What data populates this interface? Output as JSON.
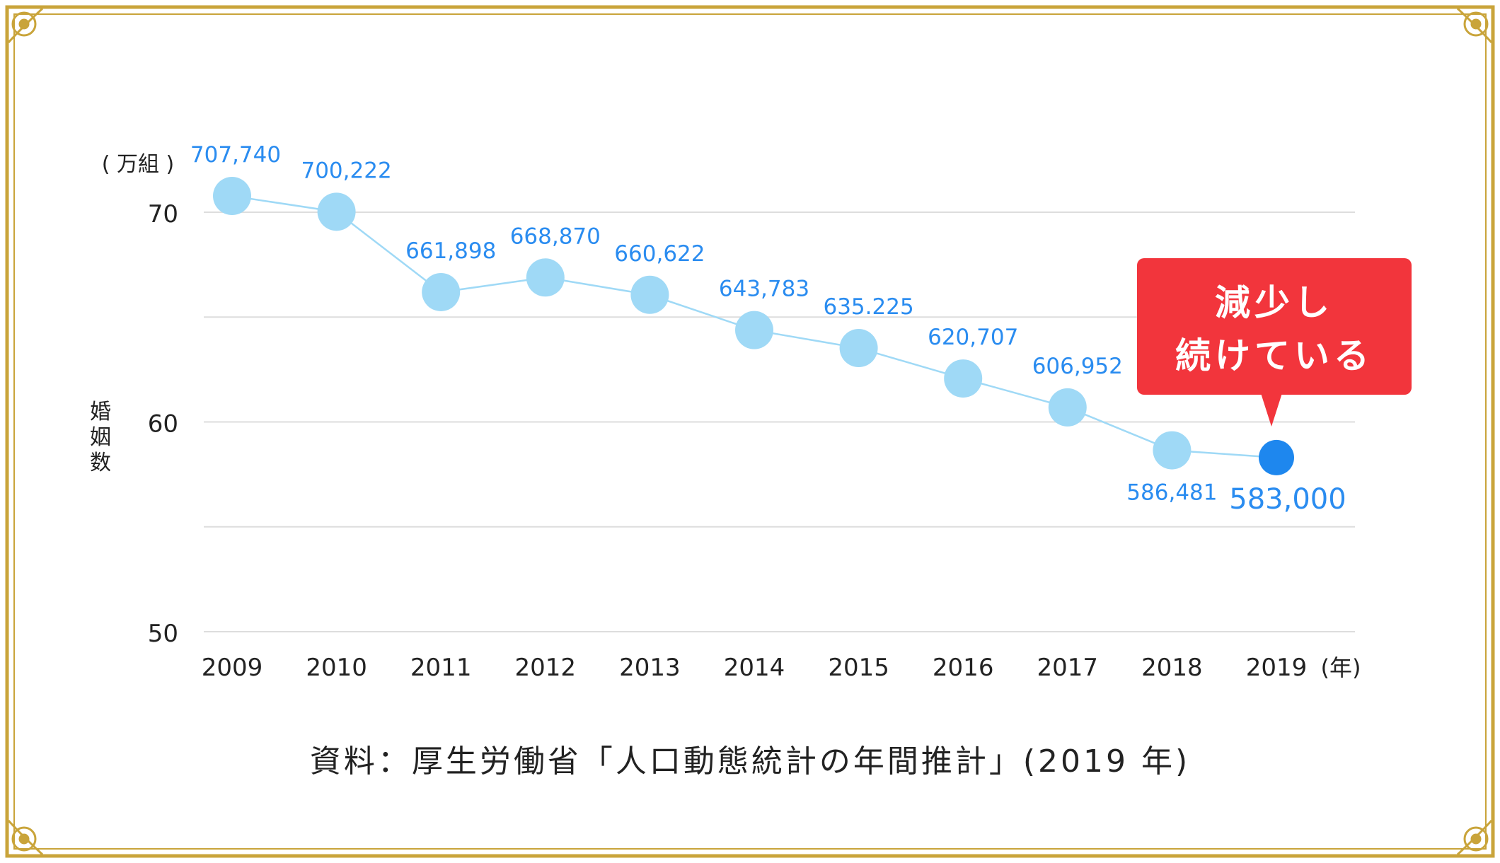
{
  "chart_data": {
    "type": "line",
    "x": [
      "2009",
      "2010",
      "2011",
      "2012",
      "2013",
      "2014",
      "2015",
      "2016",
      "2017",
      "2018",
      "2019"
    ],
    "values": [
      707740,
      700222,
      661898,
      668870,
      660622,
      643783,
      635225,
      620707,
      606952,
      586481,
      583000
    ],
    "data_labels": [
      "707,740",
      "700,222",
      "661,898",
      "668,870",
      "660,622",
      "643,783",
      "635.225",
      "620,707",
      "606,952",
      "586,481",
      "583,000"
    ],
    "y_ticks": [
      "70",
      "60",
      "50"
    ],
    "ylim": [
      50,
      70
    ],
    "y_unit": "( 万組 )",
    "x_unit": "(年)",
    "ylabel": "婚姻数",
    "grid": true,
    "highlight": {
      "index": 10,
      "callout_line1": "減少し",
      "callout_line2": "続けている"
    },
    "colors": {
      "line": "#9fd9f6",
      "point": "#9fd9f6",
      "highlight_point": "#1e87ee",
      "label": "#2a8cf0",
      "callout": "#f2353c",
      "grid": "#dddddd",
      "frame": "#c9a43a"
    }
  },
  "source_note": "資料：厚生労働省「人口動態統計の年間推計」(2019 年)"
}
